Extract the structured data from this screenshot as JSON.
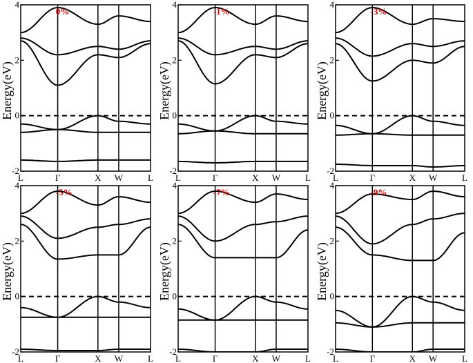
{
  "chart_data": [
    {
      "type": "line",
      "annotation": "0%",
      "ylabel": "Energy(eV)",
      "ylim": [
        -2,
        4
      ],
      "yticks": [
        "-2",
        "0",
        "2",
        "4"
      ],
      "xticks": [
        "L",
        "Γ",
        "X",
        "W",
        "L"
      ],
      "fermi_level": 0,
      "series": [
        {
          "x": [
            0,
            1,
            2,
            3,
            4
          ],
          "y": [
            3.0,
            3.9,
            3.3,
            3.6,
            3.4
          ]
        },
        {
          "x": [
            0,
            1,
            2,
            3,
            4
          ],
          "y": [
            2.8,
            2.2,
            2.5,
            2.4,
            2.7
          ]
        },
        {
          "x": [
            0,
            1,
            2,
            3,
            4
          ],
          "y": [
            2.7,
            1.1,
            2.2,
            2.1,
            2.6
          ]
        },
        {
          "x": [
            0,
            1,
            2,
            3,
            4
          ],
          "y": [
            -0.3,
            -0.5,
            0.0,
            -0.2,
            -0.3
          ]
        },
        {
          "x": [
            0,
            1,
            2,
            3,
            4
          ],
          "y": [
            -0.6,
            -0.5,
            -0.6,
            -0.6,
            -0.6
          ]
        },
        {
          "x": [
            0,
            1,
            2,
            3,
            4
          ],
          "y": [
            -1.6,
            -1.65,
            -1.6,
            -1.6,
            -1.6
          ]
        }
      ]
    },
    {
      "type": "line",
      "annotation": "-1%",
      "ylabel": "Energy(eV)",
      "ylim": [
        -2,
        4
      ],
      "yticks": [
        "-2",
        "0",
        "2",
        "4"
      ],
      "xticks": [
        "L",
        "Γ",
        "X",
        "W",
        "L"
      ],
      "fermi_level": 0,
      "series": [
        {
          "x": [
            0,
            1,
            2,
            3,
            4
          ],
          "y": [
            3.0,
            3.9,
            3.3,
            3.6,
            3.4
          ]
        },
        {
          "x": [
            0,
            1,
            2,
            3,
            4
          ],
          "y": [
            2.8,
            2.2,
            2.5,
            2.4,
            2.7
          ]
        },
        {
          "x": [
            0,
            1,
            2,
            3,
            4
          ],
          "y": [
            2.7,
            1.15,
            2.2,
            2.1,
            2.6
          ]
        },
        {
          "x": [
            0,
            1,
            2,
            3,
            4
          ],
          "y": [
            -0.3,
            -0.55,
            0.0,
            -0.2,
            -0.3
          ]
        },
        {
          "x": [
            0,
            1,
            2,
            3,
            4
          ],
          "y": [
            -0.65,
            -0.55,
            -0.65,
            -0.65,
            -0.65
          ]
        },
        {
          "x": [
            0,
            1,
            2,
            3,
            4
          ],
          "y": [
            -1.65,
            -1.7,
            -1.65,
            -1.65,
            -1.65
          ]
        }
      ]
    },
    {
      "type": "line",
      "annotation": "-3%",
      "ylabel": "Energy(eV)",
      "ylim": [
        -2,
        4
      ],
      "yticks": [
        "-2",
        "0",
        "2",
        "4"
      ],
      "xticks": [
        "L",
        "Γ",
        "X",
        "W",
        "L"
      ],
      "fermi_level": 0,
      "series": [
        {
          "x": [
            0,
            1,
            2,
            3,
            4
          ],
          "y": [
            3.0,
            3.9,
            3.3,
            3.5,
            3.4
          ]
        },
        {
          "x": [
            0,
            1,
            2,
            3,
            4
          ],
          "y": [
            2.8,
            2.15,
            2.6,
            2.5,
            2.7
          ]
        },
        {
          "x": [
            0,
            1,
            2,
            3,
            4
          ],
          "y": [
            2.6,
            1.25,
            2.0,
            1.9,
            2.5
          ]
        },
        {
          "x": [
            0,
            1,
            2,
            3,
            4
          ],
          "y": [
            -0.35,
            -0.65,
            0.0,
            -0.2,
            -0.35
          ]
        },
        {
          "x": [
            0,
            1,
            2,
            3,
            4
          ],
          "y": [
            -0.7,
            -0.65,
            -0.7,
            -0.7,
            -0.7
          ]
        },
        {
          "x": [
            0,
            1,
            2,
            3,
            4
          ],
          "y": [
            -1.75,
            -1.8,
            -1.8,
            -1.85,
            -1.8
          ]
        }
      ]
    },
    {
      "type": "line",
      "annotation": "-5%",
      "ylabel": "Energy(eV)",
      "ylim": [
        -2,
        4
      ],
      "yticks": [
        "-2",
        "0",
        "2",
        "4"
      ],
      "xticks": [
        "L",
        "Γ",
        "X",
        "W",
        "L"
      ],
      "fermi_level": 0,
      "series": [
        {
          "x": [
            0,
            1,
            2,
            3,
            4
          ],
          "y": [
            3.0,
            3.8,
            3.3,
            3.6,
            3.4
          ]
        },
        {
          "x": [
            0,
            1,
            2,
            3,
            4
          ],
          "y": [
            2.9,
            2.1,
            2.5,
            2.6,
            2.8
          ]
        },
        {
          "x": [
            0,
            1,
            2,
            3,
            4
          ],
          "y": [
            2.6,
            1.35,
            1.5,
            1.5,
            2.5
          ]
        },
        {
          "x": [
            0,
            1,
            2,
            3,
            4
          ],
          "y": [
            -0.4,
            -0.75,
            0.0,
            -0.2,
            -0.4
          ]
        },
        {
          "x": [
            0,
            1,
            2,
            3,
            4
          ],
          "y": [
            -0.75,
            -0.75,
            -0.75,
            -0.75,
            -0.75
          ]
        },
        {
          "x": [
            0,
            1,
            2,
            3,
            4
          ],
          "y": [
            -1.9,
            -1.95,
            -1.95,
            -1.9,
            -1.9
          ]
        }
      ]
    },
    {
      "type": "line",
      "annotation": "-7%",
      "ylabel": "Energy(eV)",
      "ylim": [
        -2,
        4
      ],
      "yticks": [
        "-2",
        "0",
        "2",
        "4"
      ],
      "xticks": [
        "L",
        "Γ",
        "X",
        "W",
        "L"
      ],
      "fermi_level": 0,
      "series": [
        {
          "x": [
            0,
            1,
            2,
            3,
            4
          ],
          "y": [
            3.0,
            3.8,
            3.4,
            3.7,
            3.5
          ]
        },
        {
          "x": [
            0,
            1,
            2,
            3,
            4
          ],
          "y": [
            2.9,
            2.0,
            2.6,
            2.7,
            2.9
          ]
        },
        {
          "x": [
            0,
            1,
            2,
            3,
            4
          ],
          "y": [
            2.6,
            1.4,
            1.4,
            1.4,
            2.4
          ]
        },
        {
          "x": [
            0,
            1,
            2,
            3,
            4
          ],
          "y": [
            -0.45,
            -0.85,
            0.0,
            -0.2,
            -0.45
          ]
        },
        {
          "x": [
            0,
            1,
            2,
            3,
            4
          ],
          "y": [
            -0.85,
            -0.85,
            -0.85,
            -0.85,
            -0.85
          ]
        },
        {
          "x": [
            0,
            1,
            2,
            3,
            4
          ],
          "y": [
            -1.9,
            -2.0,
            -2.0,
            -1.9,
            -1.9
          ]
        }
      ]
    },
    {
      "type": "line",
      "annotation": "-9%",
      "ylabel": "Energy(eV)",
      "ylim": [
        -2,
        4
      ],
      "yticks": [
        "-2",
        "0",
        "2",
        "4"
      ],
      "xticks": [
        "L",
        "Γ",
        "X",
        "W",
        "L"
      ],
      "fermi_level": 0,
      "series": [
        {
          "x": [
            0,
            1,
            2,
            3,
            4
          ],
          "y": [
            3.0,
            3.7,
            3.5,
            3.8,
            3.6
          ]
        },
        {
          "x": [
            0,
            1,
            2,
            3,
            4
          ],
          "y": [
            2.9,
            1.9,
            2.6,
            2.8,
            3.0
          ]
        },
        {
          "x": [
            0,
            1,
            2,
            3,
            4
          ],
          "y": [
            2.5,
            1.5,
            1.3,
            1.3,
            2.3
          ]
        },
        {
          "x": [
            0,
            1,
            2,
            3,
            4
          ],
          "y": [
            -0.5,
            -1.1,
            0.0,
            -0.2,
            -0.5
          ]
        },
        {
          "x": [
            0,
            1,
            2,
            3,
            4
          ],
          "y": [
            -0.95,
            -1.1,
            -0.95,
            -0.95,
            -0.95
          ]
        },
        {
          "x": [
            0,
            1,
            2,
            3,
            4
          ],
          "y": [
            -1.9,
            -2.0,
            -2.0,
            -1.9,
            -1.9
          ]
        }
      ]
    }
  ],
  "colors": {
    "line": "#000000",
    "annotation": "#e00000",
    "background": "#ffffff"
  }
}
